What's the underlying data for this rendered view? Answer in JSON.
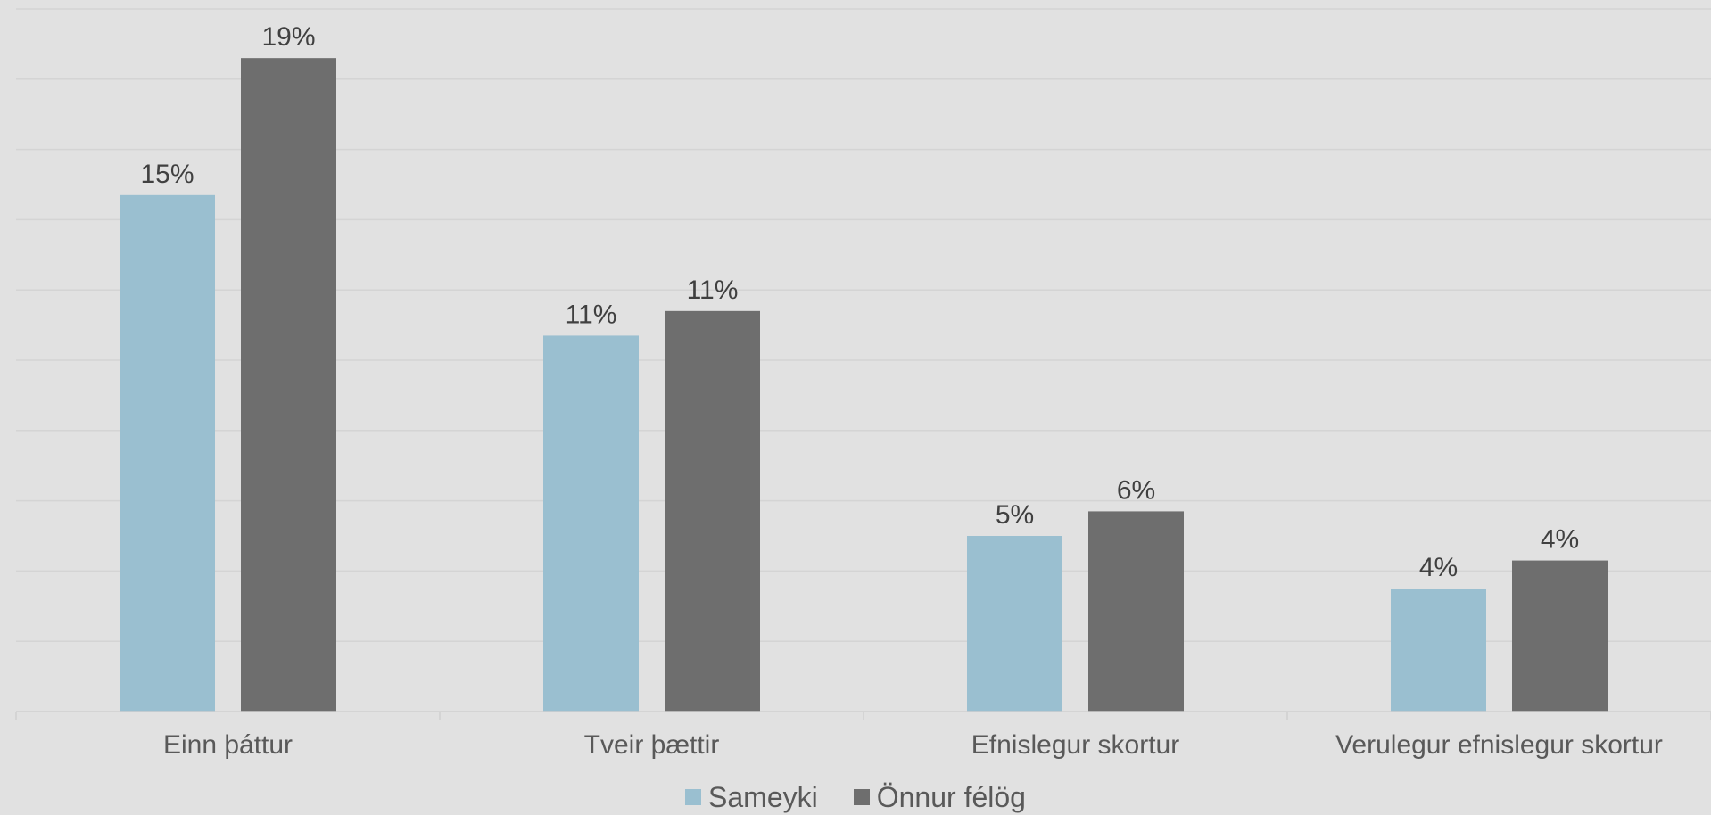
{
  "chart_data": {
    "type": "bar",
    "categories": [
      "Einn þáttur",
      "Tveir þættir",
      "Efnislegur skortur",
      "Verulegur efnislegur skortur"
    ],
    "series": [
      {
        "name": "Sameyki",
        "color": "#9abfd0",
        "values": [
          14.7,
          10.7,
          5.0,
          3.5
        ],
        "labels": [
          "15%",
          "11%",
          "5%",
          "4%"
        ]
      },
      {
        "name": "Önnur félög",
        "color": "#6e6e6e",
        "values": [
          18.6,
          11.4,
          5.7,
          4.3
        ],
        "labels": [
          "19%",
          "11%",
          "6%",
          "4%"
        ]
      }
    ],
    "ylim": [
      0,
      20
    ],
    "grid": true,
    "legend_position": "bottom",
    "title": "",
    "xlabel": "",
    "ylabel": ""
  }
}
